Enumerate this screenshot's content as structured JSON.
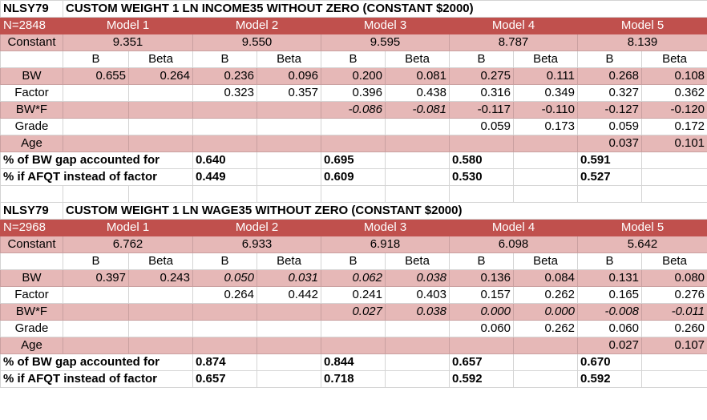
{
  "tables": [
    {
      "dataset": "NLSY79",
      "title": "CUSTOM WEIGHT 1 LN INCOME35 WITHOUT ZERO (CONSTANT $2000)",
      "n_label": "N=2848",
      "models": [
        "Model 1",
        "Model 2",
        "Model 3",
        "Model 4",
        "Model 5"
      ],
      "constant_label": "Constant",
      "constants": [
        "9.351",
        "9.550",
        "9.595",
        "8.787",
        "8.139"
      ],
      "b_label": "B",
      "beta_label": "Beta",
      "rows": [
        {
          "label": "BW",
          "values": [
            "0.655",
            "0.264",
            "0.236",
            "0.096",
            "0.200",
            "0.081",
            "0.275",
            "0.111",
            "0.268",
            "0.108"
          ]
        },
        {
          "label": "Factor",
          "values": [
            "",
            "",
            "0.323",
            "0.357",
            "0.396",
            "0.438",
            "0.316",
            "0.349",
            "0.327",
            "0.362"
          ]
        },
        {
          "label": "BW*F",
          "values": [
            "",
            "",
            "",
            "",
            "-0.086",
            "-0.081",
            "-0.117",
            "-0.110",
            "-0.127",
            "-0.120"
          ]
        },
        {
          "label": "Grade",
          "values": [
            "",
            "",
            "",
            "",
            "",
            "",
            "0.059",
            "0.173",
            "0.059",
            "0.172"
          ]
        },
        {
          "label": "Age",
          "values": [
            "",
            "",
            "",
            "",
            "",
            "",
            "",
            "",
            "0.037",
            "0.101"
          ]
        }
      ],
      "summary": [
        {
          "label": "% of BW gap accounted for",
          "values": [
            "",
            "0.640",
            "0.695",
            "0.580",
            "0.591"
          ]
        },
        {
          "label": "% if AFQT instead of factor",
          "values": [
            "",
            "0.449",
            "0.609",
            "0.530",
            "0.527"
          ]
        }
      ]
    },
    {
      "dataset": "NLSY79",
      "title": "CUSTOM WEIGHT 1 LN WAGE35 WITHOUT ZERO (CONSTANT $2000)",
      "n_label": "N=2968",
      "models": [
        "Model 1",
        "Model 2",
        "Model 3",
        "Model 4",
        "Model 5"
      ],
      "constant_label": "Constant",
      "constants": [
        "6.762",
        "6.933",
        "6.918",
        "6.098",
        "5.642"
      ],
      "b_label": "B",
      "beta_label": "Beta",
      "rows": [
        {
          "label": "BW",
          "values": [
            "0.397",
            "0.243",
            "0.050",
            "0.031",
            "0.062",
            "0.038",
            "0.136",
            "0.084",
            "0.131",
            "0.080"
          ]
        },
        {
          "label": "Factor",
          "values": [
            "",
            "",
            "0.264",
            "0.442",
            "0.241",
            "0.403",
            "0.157",
            "0.262",
            "0.165",
            "0.276"
          ]
        },
        {
          "label": "BW*F",
          "values": [
            "",
            "",
            "",
            "",
            "0.027",
            "0.038",
            "0.000",
            "0.000",
            "-0.008",
            "-0.011"
          ]
        },
        {
          "label": "Grade",
          "values": [
            "",
            "",
            "",
            "",
            "",
            "",
            "0.060",
            "0.262",
            "0.060",
            "0.260"
          ]
        },
        {
          "label": "Age",
          "values": [
            "",
            "",
            "",
            "",
            "",
            "",
            "",
            "",
            "0.027",
            "0.107"
          ]
        }
      ],
      "summary": [
        {
          "label": "% of BW gap accounted for",
          "values": [
            "",
            "0.874",
            "0.844",
            "0.657",
            "0.670"
          ]
        },
        {
          "label": "% if AFQT instead of factor",
          "values": [
            "",
            "0.657",
            "0.718",
            "0.592",
            "0.592"
          ]
        }
      ]
    }
  ]
}
